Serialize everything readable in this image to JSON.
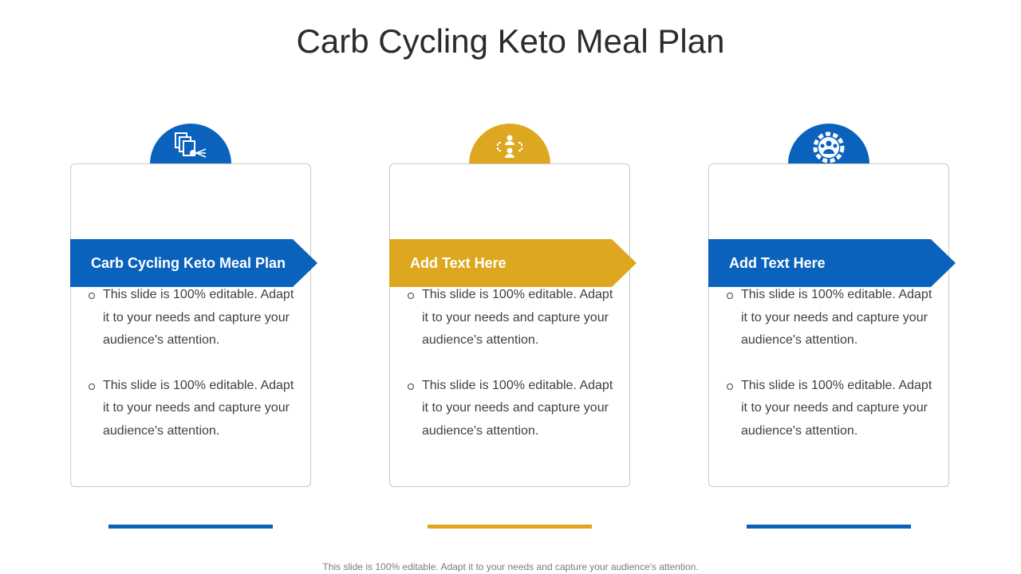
{
  "title": "Carb Cycling Keto Meal Plan",
  "colors": {
    "blue": "#0a62bd",
    "gold": "#dda81f"
  },
  "cards": [
    {
      "icon": "documents-network-icon",
      "color": "blue",
      "heading": "Carb Cycling Keto Meal Plan",
      "bullets": [
        "This slide is 100% editable. Adapt it to your needs and capture your audience's attention.",
        "This slide is 100% editable. Adapt it to your needs and capture your audience's attention."
      ]
    },
    {
      "icon": "people-connection-icon",
      "color": "gold",
      "heading": "Add Text Here",
      "bullets": [
        "This slide is 100% editable. Adapt it to your needs and capture your audience's attention.",
        "This slide is 100% editable. Adapt it to your needs and capture your audience's attention."
      ]
    },
    {
      "icon": "team-gear-icon",
      "color": "blue",
      "heading": "Add Text Here",
      "bullets": [
        "This slide is 100% editable. Adapt it to your needs and capture your audience's attention.",
        "This slide is 100% editable. Adapt it to your needs and capture your audience's attention."
      ]
    }
  ],
  "footer": "This slide is 100% editable. Adapt it to your needs and capture your audience's attention."
}
